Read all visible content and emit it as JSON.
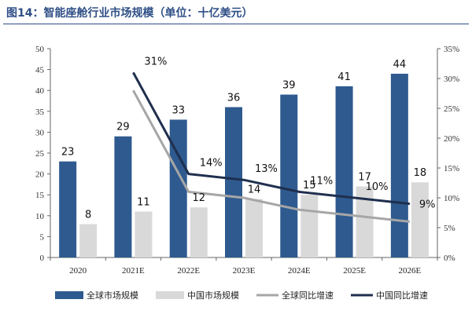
{
  "title": "图14：智能座舱行业市场规模（单位：十亿美元）",
  "chart_data": {
    "type": "bar",
    "categories": [
      "2020",
      "2021E",
      "2022E",
      "2023E",
      "2024E",
      "2025E",
      "2026E"
    ],
    "series": [
      {
        "name": "全球市场规模",
        "kind": "bar",
        "axis": "left",
        "color": "#2e5a8f",
        "values": [
          23,
          29,
          33,
          36,
          39,
          41,
          44
        ],
        "labels": [
          "23",
          "29",
          "33",
          "36",
          "39",
          "41",
          "44"
        ]
      },
      {
        "name": "中国市场规模",
        "kind": "bar",
        "axis": "left",
        "color": "#d9d9d9",
        "values": [
          8,
          11,
          12,
          14,
          15,
          17,
          18
        ],
        "labels": [
          "8",
          "11",
          "12",
          "14",
          "15",
          "17",
          "18"
        ]
      },
      {
        "name": "全球同比增速",
        "kind": "line",
        "axis": "right",
        "color": "#a6a6a6",
        "values": [
          null,
          28,
          11,
          10,
          8,
          7,
          6
        ]
      },
      {
        "name": "中国同比增速",
        "kind": "line",
        "axis": "right",
        "color": "#1f2f4e",
        "values": [
          null,
          31,
          14,
          13,
          11,
          10,
          9
        ],
        "labels": [
          "",
          "31%",
          "14%",
          "13%",
          "11%",
          "10%",
          "9%"
        ]
      }
    ],
    "y_left": {
      "min": 0,
      "max": 50,
      "step": 5,
      "ticks": [
        "0",
        "5",
        "10",
        "15",
        "20",
        "25",
        "30",
        "35",
        "40",
        "45",
        "50"
      ]
    },
    "y_right": {
      "min": 0,
      "max": 35,
      "step": 5,
      "ticks": [
        "0%",
        "5%",
        "10%",
        "15%",
        "20%",
        "25%",
        "30%",
        "35%"
      ]
    },
    "legend_position": "bottom"
  }
}
